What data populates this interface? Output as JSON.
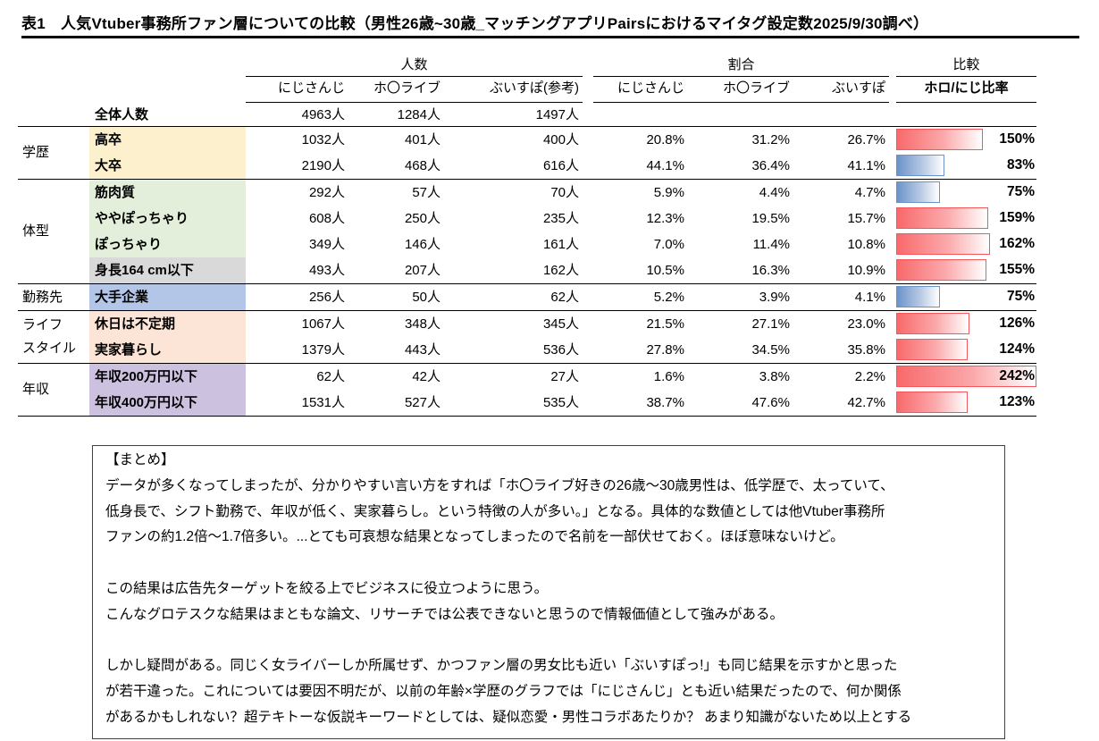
{
  "title": "表1　人気Vtuber事務所ファン層についての比較（男性26歳~30歳_マッチングアプリPairsにおけるマイタグ設定数2025/9/30調べ）",
  "colors": {
    "bar_increase": "#f8696b",
    "bar_decrease": "#6b93c9",
    "bg_education": "#fdf0cd",
    "bg_body": "#e3efdb",
    "bg_height": "#d9d9d9",
    "bg_work": "#b4c6e7",
    "bg_lifestyle": "#fce4d6",
    "bg_income": "#cdc1e0"
  },
  "table": {
    "group_headers": {
      "count": "人数",
      "ratio": "割合",
      "compare": "比較"
    },
    "col_headers": {
      "count": [
        "にじさんじ",
        "ホ〇ライブ",
        "ぶいすぽ(参考)"
      ],
      "ratio": [
        "にじさんじ",
        "ホ〇ライブ",
        "ぶいすぽ"
      ],
      "compare": "ホロ/にじ比率"
    },
    "total_row": {
      "label": "全体人数",
      "counts": [
        "4963人",
        "1284人",
        "1497人"
      ]
    },
    "bar_max": 242,
    "groups": [
      {
        "label": "学歴",
        "rows": [
          {
            "label": "高卒",
            "bg": "#fdf0cd",
            "counts": [
              "1032人",
              "401人",
              "400人"
            ],
            "ratios": [
              "20.8%",
              "31.2%",
              "26.7%"
            ],
            "bar_value": 150,
            "bar_label": "150%"
          },
          {
            "label": "大卒",
            "bg": "#fdf0cd",
            "counts": [
              "2190人",
              "468人",
              "616人"
            ],
            "ratios": [
              "44.1%",
              "36.4%",
              "41.1%"
            ],
            "bar_value": 83,
            "bar_label": "83%"
          }
        ]
      },
      {
        "label": "体型",
        "rows": [
          {
            "label": "筋肉質",
            "bg": "#e3efdb",
            "counts": [
              "292人",
              "57人",
              "70人"
            ],
            "ratios": [
              "5.9%",
              "4.4%",
              "4.7%"
            ],
            "bar_value": 75,
            "bar_label": "75%"
          },
          {
            "label": "ややぽっちゃり",
            "bg": "#e3efdb",
            "counts": [
              "608人",
              "250人",
              "235人"
            ],
            "ratios": [
              "12.3%",
              "19.5%",
              "15.7%"
            ],
            "bar_value": 159,
            "bar_label": "159%"
          },
          {
            "label": "ぽっちゃり",
            "bg": "#e3efdb",
            "counts": [
              "349人",
              "146人",
              "161人"
            ],
            "ratios": [
              "7.0%",
              "11.4%",
              "10.8%"
            ],
            "bar_value": 162,
            "bar_label": "162%"
          },
          {
            "label": "身長164 cm以下",
            "bg": "#d9d9d9",
            "counts": [
              "493人",
              "207人",
              "162人"
            ],
            "ratios": [
              "10.5%",
              "16.3%",
              "10.9%"
            ],
            "bar_value": 155,
            "bar_label": "155%"
          }
        ]
      },
      {
        "label": "勤務先",
        "rows": [
          {
            "label": "大手企業",
            "bg": "#b4c6e7",
            "counts": [
              "256人",
              "50人",
              "62人"
            ],
            "ratios": [
              "5.2%",
              "3.9%",
              "4.1%"
            ],
            "bar_value": 75,
            "bar_label": "75%"
          }
        ]
      },
      {
        "label": "ライフ\nスタイル",
        "rows": [
          {
            "label": "休日は不定期",
            "bg": "#fce4d6",
            "counts": [
              "1067人",
              "348人",
              "345人"
            ],
            "ratios": [
              "21.5%",
              "27.1%",
              "23.0%"
            ],
            "bar_value": 126,
            "bar_label": "126%"
          },
          {
            "label": "実家暮らし",
            "bg": "#fce4d6",
            "counts": [
              "1379人",
              "443人",
              "536人"
            ],
            "ratios": [
              "27.8%",
              "34.5%",
              "35.8%"
            ],
            "bar_value": 124,
            "bar_label": "124%"
          }
        ]
      },
      {
        "label": "年収",
        "rows": [
          {
            "label": "年収200万円以下",
            "bg": "#cdc1e0",
            "counts": [
              "62人",
              "42人",
              "27人"
            ],
            "ratios": [
              "1.6%",
              "3.8%",
              "2.2%"
            ],
            "bar_value": 242,
            "bar_label": "242%"
          },
          {
            "label": "年収400万円以下",
            "bg": "#cdc1e0",
            "counts": [
              "1531人",
              "527人",
              "535人"
            ],
            "ratios": [
              "38.7%",
              "47.6%",
              "42.7%"
            ],
            "bar_value": 123,
            "bar_label": "123%"
          }
        ]
      }
    ]
  },
  "summary": {
    "heading": "【まとめ】",
    "p1": [
      "データが多くなってしまったが、分かりやすい言い方をすれば「ホ〇ライブ好きの26歳～30歳男性は、低学歴で、太っていて、",
      "低身長で、シフト勤務で、年収が低く、実家暮らし。という特徴の人が多い。」となる。具体的な数値としては他Vtuber事務所",
      "ファンの約1.2倍～1.7倍多い。...とても可哀想な結果となってしまったので名前を一部伏せておく。ほぼ意味ないけど。"
    ],
    "p2": [
      "この結果は広告先ターゲットを絞る上でビジネスに役立つように思う。",
      "こんなグロテスクな結果はまともな論文、リサーチでは公表できないと思うので情報価値として強みがある。"
    ],
    "p3": [
      "しかし疑問がある。同じく女ライバーしか所属せず、かつファン層の男女比も近い「ぶいすぽっ!」も同じ結果を示すかと思った",
      "が若干違った。これについては要因不明だが、以前の年齢×学歴のグラフでは「にじさんじ」とも近い結果だったので、何か関係",
      "があるかもしれない？超テキトーな仮説キーワードとしては、疑似恋愛・男性コラボあたりか？ あまり知識がないため以上とする"
    ]
  }
}
